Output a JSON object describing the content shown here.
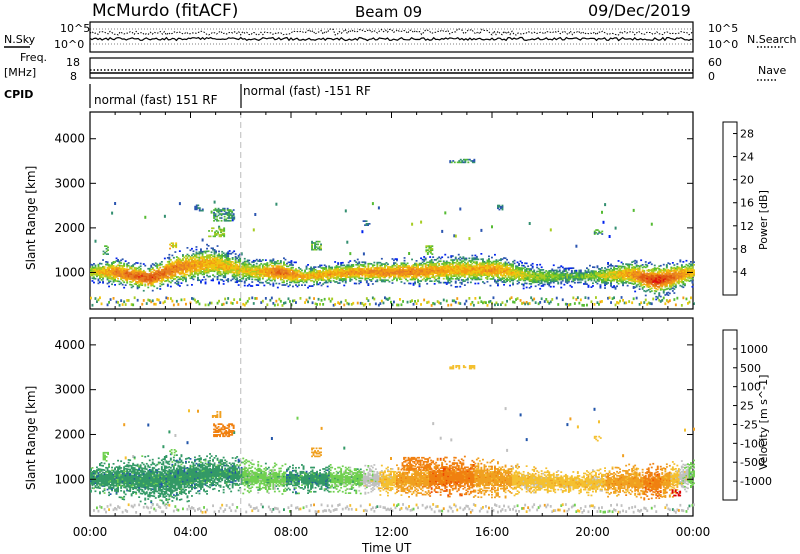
{
  "header": {
    "station": "McMurdo (fitACF)",
    "beam": "Beam 09",
    "date": "09/Dec/2019"
  },
  "panels": {
    "nsky_label": "N.Sky",
    "nsearch_label": "N.Search",
    "freq_label": "Freq.",
    "freq_unit": "[MHz]",
    "nave_label": "Nave",
    "cpid_label": "CPID",
    "noise_ticks_left": [
      "10^5",
      "10^0"
    ],
    "noise_ticks_right": [
      "10^5",
      "10^0"
    ],
    "freq_ticks_left": [
      "18",
      "8"
    ],
    "freq_ticks_right": [
      "60",
      "0"
    ],
    "cpid_segments": [
      {
        "label": "normal (fast) 151 RF",
        "start_h": 0,
        "end_h": 6
      },
      {
        "label": "normal (fast) -151 RF",
        "start_h": 6,
        "end_h": 24
      }
    ]
  },
  "colors": {
    "power_scale": [
      "#0022ee",
      "#2b55b0",
      "#338f70",
      "#55bb33",
      "#a6cc22",
      "#f1c40f",
      "#f39c12",
      "#e67e22",
      "#e05a10",
      "#e01010"
    ],
    "velocity_scale": [
      "#dd0000",
      "#ee4400",
      "#f08010",
      "#f0a020",
      "#f4c030",
      "#c0c0c0",
      "#70d050",
      "#339966",
      "#2255aa",
      "#1133cc"
    ]
  },
  "chart_data": [
    {
      "type": "heatmap",
      "name": "power",
      "ylabel": "Slant Range [km]",
      "xlabel": "Time UT",
      "xlim": [
        0,
        24
      ],
      "ylim": [
        180,
        4600
      ],
      "x_ticks": [
        "00:00",
        "04:00",
        "08:00",
        "12:00",
        "16:00",
        "20:00",
        "00:00"
      ],
      "y_ticks": [
        1000,
        2000,
        3000,
        4000
      ],
      "colorbar": {
        "label": "Power [dB]",
        "ticks": [
          "4",
          "8",
          "12",
          "16",
          "20",
          "24",
          "28"
        ],
        "range": [
          0,
          30
        ]
      },
      "main_band": [
        {
          "t": 0.0,
          "r": 1000,
          "w": 160,
          "v": 14
        },
        {
          "t": 1.0,
          "r": 1000,
          "w": 220,
          "v": 22
        },
        {
          "t": 2.3,
          "r": 850,
          "w": 200,
          "v": 26
        },
        {
          "t": 3.5,
          "r": 1100,
          "w": 260,
          "v": 22
        },
        {
          "t": 4.8,
          "r": 1200,
          "w": 280,
          "v": 18
        },
        {
          "t": 6.5,
          "r": 1000,
          "w": 200,
          "v": 16
        },
        {
          "t": 7.5,
          "r": 1000,
          "w": 220,
          "v": 24
        },
        {
          "t": 8.5,
          "r": 900,
          "w": 160,
          "v": 18
        },
        {
          "t": 10.5,
          "r": 1000,
          "w": 180,
          "v": 20
        },
        {
          "t": 12.8,
          "r": 1000,
          "w": 200,
          "v": 22
        },
        {
          "t": 14.5,
          "r": 1050,
          "w": 240,
          "v": 18
        },
        {
          "t": 16.2,
          "r": 1050,
          "w": 220,
          "v": 20
        },
        {
          "t": 17.5,
          "r": 900,
          "w": 180,
          "v": 14
        },
        {
          "t": 19.5,
          "r": 900,
          "w": 140,
          "v": 10
        },
        {
          "t": 21.5,
          "r": 950,
          "w": 220,
          "v": 20
        },
        {
          "t": 22.5,
          "r": 800,
          "w": 260,
          "v": 28
        },
        {
          "t": 24.0,
          "r": 1000,
          "w": 200,
          "v": 18
        }
      ],
      "blobs": [
        {
          "t": 5.3,
          "r": 2300,
          "v": 8,
          "w": 0.8,
          "h": 300
        },
        {
          "t": 5.0,
          "r": 1900,
          "v": 12,
          "w": 0.6,
          "h": 200
        },
        {
          "t": 4.3,
          "r": 2450,
          "v": 6,
          "w": 0.3,
          "h": 150
        },
        {
          "t": 9.0,
          "r": 1600,
          "v": 10,
          "w": 0.4,
          "h": 200
        },
        {
          "t": 14.8,
          "r": 3500,
          "v": 8,
          "w": 1.0,
          "h": 80
        },
        {
          "t": 16.3,
          "r": 2450,
          "v": 6,
          "w": 0.2,
          "h": 100
        },
        {
          "t": 11.0,
          "r": 2100,
          "v": 6,
          "w": 0.3,
          "h": 100
        },
        {
          "t": 20.2,
          "r": 1900,
          "v": 8,
          "w": 0.3,
          "h": 100
        },
        {
          "t": 0.6,
          "r": 1500,
          "v": 10,
          "w": 0.2,
          "h": 200
        },
        {
          "t": 3.3,
          "r": 1600,
          "v": 16,
          "w": 0.3,
          "h": 150
        },
        {
          "t": 13.5,
          "r": 1500,
          "v": 12,
          "w": 0.3,
          "h": 200
        }
      ]
    },
    {
      "type": "heatmap",
      "name": "velocity",
      "ylabel": "Slant Range [km]",
      "xlabel": "Time UT",
      "xlim": [
        0,
        24
      ],
      "ylim": [
        180,
        4600
      ],
      "x_ticks": [
        "00:00",
        "04:00",
        "08:00",
        "12:00",
        "16:00",
        "20:00",
        "00:00"
      ],
      "y_ticks": [
        1000,
        2000,
        3000,
        4000
      ],
      "colorbar": {
        "label": "Velocity [m s^-1]",
        "ticks": [
          "1000",
          "500",
          "100",
          "25",
          "-25",
          "-100",
          "-500",
          "-1000"
        ]
      },
      "main_band": [
        {
          "t": 0.0,
          "r": 1000,
          "w": 200,
          "v": 7
        },
        {
          "t": 1.5,
          "r": 1000,
          "w": 300,
          "v": 7
        },
        {
          "t": 3.0,
          "r": 950,
          "w": 380,
          "v": 7
        },
        {
          "t": 5.0,
          "r": 1150,
          "w": 280,
          "v": 7
        },
        {
          "t": 7.0,
          "r": 1000,
          "w": 220,
          "v": 6
        },
        {
          "t": 8.5,
          "r": 1000,
          "w": 200,
          "v": 7
        },
        {
          "t": 10.5,
          "r": 1000,
          "w": 200,
          "v": 6
        },
        {
          "t": 12.5,
          "r": 950,
          "w": 220,
          "v": 3
        },
        {
          "t": 14.5,
          "r": 1050,
          "w": 300,
          "v": 2
        },
        {
          "t": 16.0,
          "r": 1000,
          "w": 280,
          "v": 3
        },
        {
          "t": 17.5,
          "r": 950,
          "w": 200,
          "v": 4
        },
        {
          "t": 19.5,
          "r": 900,
          "w": 160,
          "v": 4
        },
        {
          "t": 21.5,
          "r": 950,
          "w": 240,
          "v": 3
        },
        {
          "t": 22.5,
          "r": 900,
          "w": 280,
          "v": 2
        },
        {
          "t": 24.0,
          "r": 1100,
          "w": 200,
          "v": 6
        }
      ],
      "blobs": [
        {
          "t": 5.3,
          "r": 2100,
          "v": 2,
          "w": 0.8,
          "h": 300
        },
        {
          "t": 5.0,
          "r": 2450,
          "v": 3,
          "w": 0.3,
          "h": 150
        },
        {
          "t": 9.0,
          "r": 1600,
          "v": 3,
          "w": 0.4,
          "h": 200
        },
        {
          "t": 14.8,
          "r": 3500,
          "v": 4,
          "w": 1.0,
          "h": 80
        },
        {
          "t": 20.2,
          "r": 1900,
          "v": 4,
          "w": 0.3,
          "h": 100
        },
        {
          "t": 0.6,
          "r": 1500,
          "v": 6,
          "w": 0.2,
          "h": 200
        },
        {
          "t": 3.3,
          "r": 1600,
          "v": 6,
          "w": 0.3,
          "h": 150
        },
        {
          "t": 13.0,
          "r": 1350,
          "v": 2,
          "w": 1.2,
          "h": 300
        },
        {
          "t": 23.3,
          "r": 700,
          "v": 0,
          "w": 0.3,
          "h": 150
        }
      ]
    }
  ]
}
